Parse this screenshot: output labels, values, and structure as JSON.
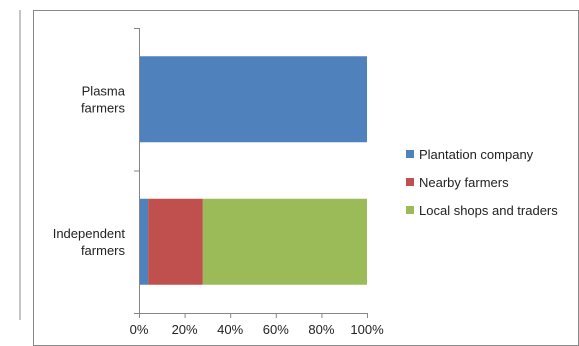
{
  "chart_data": {
    "type": "bar",
    "orientation": "horizontal",
    "stacked": true,
    "percent_stacked": true,
    "categories": [
      "Plasma farmers",
      "Independent farmers"
    ],
    "category_lines": [
      [
        "Plasma",
        "farmers"
      ],
      [
        "Independent",
        "farmers"
      ]
    ],
    "series": [
      {
        "name": "Plantation company",
        "color": "#4f81bd",
        "values": [
          100,
          4
        ]
      },
      {
        "name": "Nearby farmers",
        "color": "#c0504d",
        "values": [
          0,
          24
        ]
      },
      {
        "name": "Local shops and traders",
        "color": "#9bbb59",
        "values": [
          0,
          72
        ]
      }
    ],
    "x_ticks": [
      "0%",
      "20%",
      "40%",
      "60%",
      "80%",
      "100%"
    ],
    "xlim": [
      0,
      100
    ],
    "grid": false,
    "legend": "right"
  }
}
